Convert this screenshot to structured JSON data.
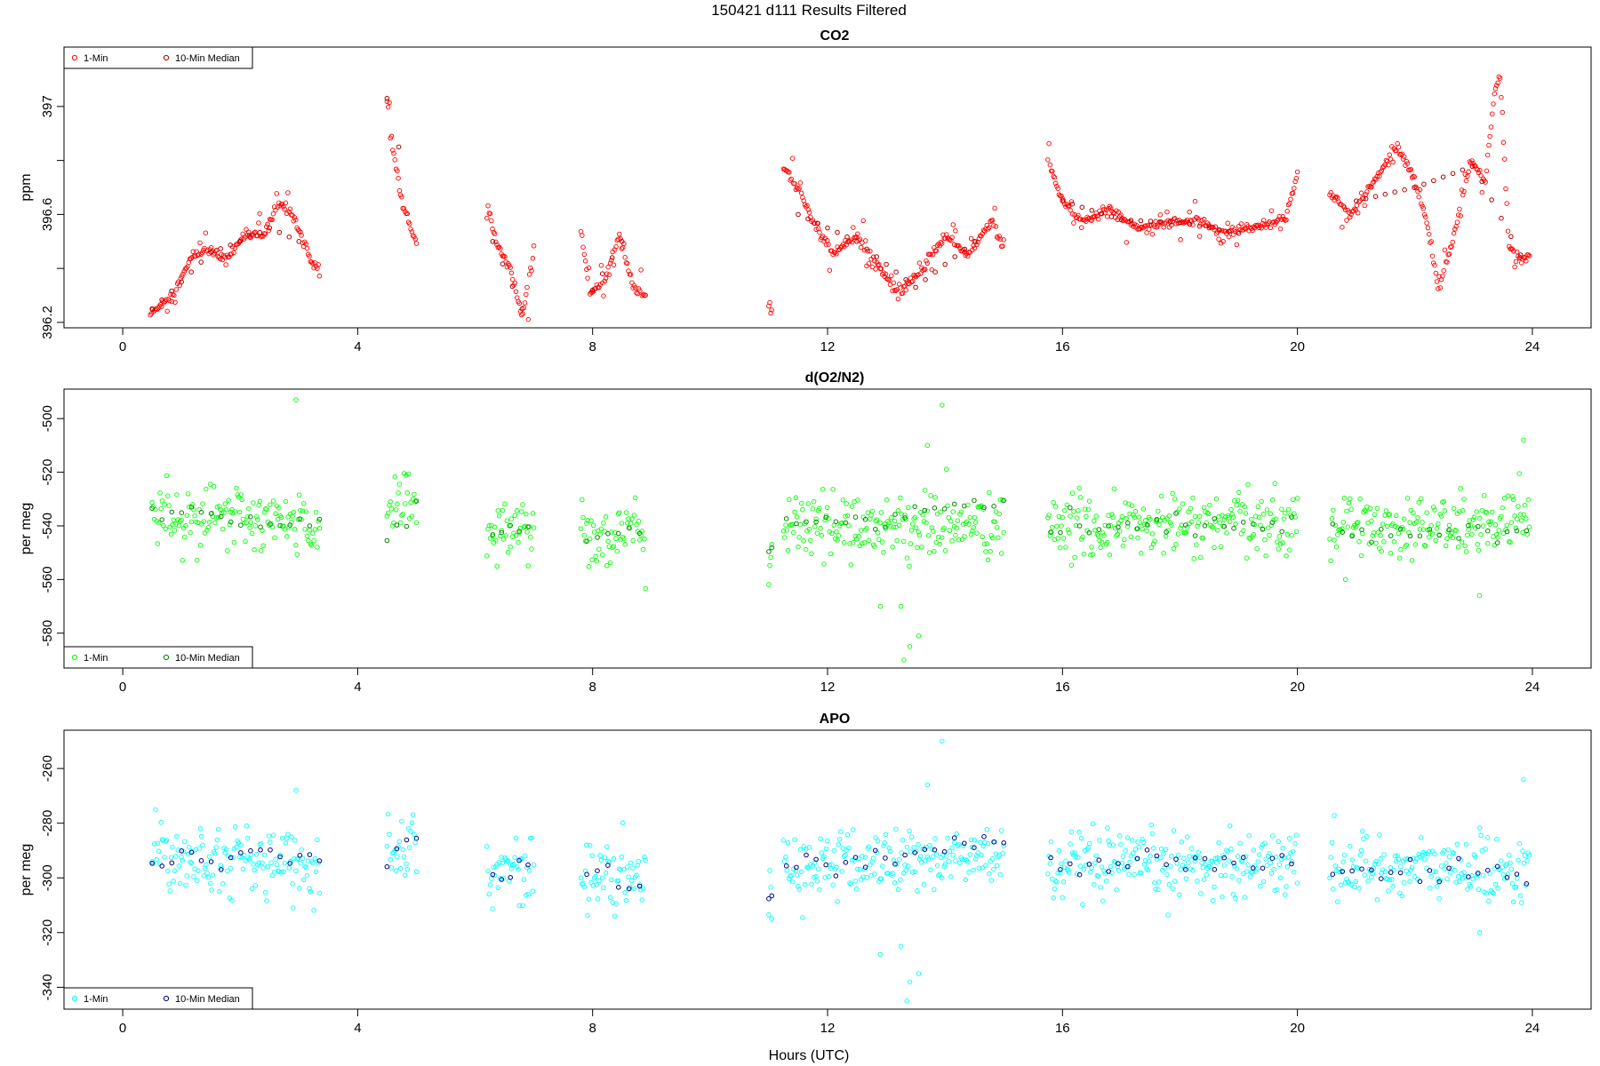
{
  "figure": {
    "title": "150421   d111   Results Filtered",
    "xlabel": "Hours (UTC)"
  },
  "legend_labels": [
    "1-Min",
    "10-Min Median"
  ],
  "chart_data": [
    {
      "type": "scatter",
      "title": "CO2",
      "ylabel": "ppm",
      "xlim": [
        -1,
        25
      ],
      "ylim": [
        396.18,
        397.22
      ],
      "xticks": [
        0,
        4,
        8,
        12,
        16,
        20,
        24
      ],
      "yticks": [
        396.2,
        396.6,
        397.0
      ],
      "yticks_minor": [
        396.4,
        396.8
      ],
      "legend": "top-left",
      "colors": {
        "one_min": "#ff0000",
        "median": "#b00000"
      },
      "series": [
        {
          "name": "1-Min",
          "segments": [
            {
              "x": [
                0.47,
                0.85,
                1.2,
                1.5,
                1.75,
                2.1,
                2.4,
                2.65,
                2.9,
                3.2,
                3.35
              ],
              "y": [
                396.23,
                396.3,
                396.45,
                396.47,
                396.43,
                396.53,
                396.52,
                396.65,
                396.6,
                396.43,
                396.39
              ]
            },
            {
              "x": [
                4.5,
                4.6,
                4.75,
                4.9,
                5.0
              ],
              "y": [
                397.03,
                396.85,
                396.65,
                396.55,
                396.5
              ]
            },
            {
              "x": [
                6.2,
                6.35,
                6.6,
                6.8,
                6.95,
                7.0
              ],
              "y": [
                396.65,
                396.5,
                396.4,
                396.22,
                396.4,
                396.48
              ]
            },
            {
              "x": [
                7.8,
                7.95,
                8.2,
                8.45,
                8.7,
                8.9
              ],
              "y": [
                396.55,
                396.3,
                396.35,
                396.53,
                396.32,
                396.3
              ]
            },
            {
              "x": [
                11.0,
                11.05
              ],
              "y": [
                396.28,
                396.24
              ]
            },
            {
              "x": [
                11.25,
                11.5,
                11.8,
                12.1,
                12.3,
                12.5,
                12.9,
                13.2,
                13.55,
                14.0,
                14.4,
                14.8,
                15.0
              ],
              "y": [
                396.78,
                396.7,
                396.55,
                396.45,
                396.5,
                396.52,
                396.4,
                396.3,
                396.38,
                396.52,
                396.45,
                396.58,
                396.48
              ]
            },
            {
              "x": [
                15.75,
                16.0,
                16.3,
                16.8,
                17.3,
                17.8,
                18.3,
                18.8,
                19.3,
                19.8,
                20.0
              ],
              "y": [
                396.8,
                396.65,
                396.57,
                396.62,
                396.55,
                396.57,
                396.58,
                396.53,
                396.55,
                396.58,
                396.75
              ]
            },
            {
              "x": [
                20.55,
                20.9,
                21.3,
                21.7,
                21.95,
                22.2,
                22.4,
                22.7,
                22.95,
                23.2,
                23.35,
                23.45,
                23.6,
                23.8,
                23.95
              ],
              "y": [
                396.68,
                396.6,
                396.72,
                396.85,
                396.75,
                396.58,
                396.32,
                396.55,
                396.8,
                396.72,
                397.05,
                397.12,
                396.5,
                396.42,
                396.45
              ]
            }
          ]
        },
        {
          "name": "10-Min Median",
          "segments": [
            {
              "x": [
                0.5,
                1.0,
                1.5,
                2.0,
                2.5,
                3.0
              ],
              "y": [
                396.25,
                396.35,
                396.46,
                396.5,
                396.55,
                396.5
              ]
            },
            {
              "x": [
                4.5,
                4.7
              ],
              "y": [
                397.03,
                396.85
              ]
            },
            {
              "x": [
                6.3,
                6.8
              ],
              "y": [
                396.5,
                396.25
              ]
            },
            {
              "x": [
                8.0,
                8.5
              ],
              "y": [
                396.32,
                396.5
              ]
            },
            {
              "x": [
                11.5,
                12.5,
                13.5,
                14.5
              ],
              "y": [
                396.6,
                396.5,
                396.33,
                396.5
              ]
            },
            {
              "x": [
                16.0,
                17.0,
                18.0,
                19.0
              ],
              "y": [
                396.65,
                396.58,
                396.57,
                396.53
              ]
            },
            {
              "x": [
                21.0,
                22.0,
                23.0,
                23.8
              ],
              "y": [
                396.65,
                396.7,
                396.78,
                396.45
              ]
            }
          ]
        }
      ]
    },
    {
      "type": "scatter",
      "title": "d(O2/N2)",
      "ylabel": "per meg",
      "xlim": [
        -1,
        25
      ],
      "ylim": [
        -593,
        -489
      ],
      "xticks": [
        0,
        4,
        8,
        12,
        16,
        20,
        24
      ],
      "yticks": [
        -580,
        -560,
        -540,
        -520,
        -500
      ],
      "legend": "bottom-left",
      "colors": {
        "one_min": "#00ff00",
        "median": "#008800"
      },
      "series": [
        {
          "name": "1-Min",
          "segments": [
            {
              "x": [
                0.5,
                3.35
              ],
              "y": [
                -535,
                -540
              ]
            },
            {
              "x": [
                4.5,
                5.0
              ],
              "y": [
                -532,
                -530
              ]
            },
            {
              "x": [
                6.2,
                7.0
              ],
              "y": [
                -542,
                -540
              ]
            },
            {
              "x": [
                7.8,
                8.9
              ],
              "y": [
                -543,
                -544
              ]
            },
            {
              "x": [
                11.0,
                11.05
              ],
              "y": [
                -551,
                -550
              ]
            },
            {
              "x": [
                11.25,
                15.0
              ],
              "y": [
                -540,
                -540
              ]
            },
            {
              "x": [
                15.75,
                20.0
              ],
              "y": [
                -541,
                -539
              ]
            },
            {
              "x": [
                20.55,
                23.95
              ],
              "y": [
                -540,
                -540
              ]
            }
          ],
          "noise_sd": 6,
          "outliers": [
            {
              "x": 2.95,
              "y": -493
            },
            {
              "x": 13.3,
              "y": -590
            },
            {
              "x": 13.4,
              "y": -585
            },
            {
              "x": 13.55,
              "y": -581
            },
            {
              "x": 13.95,
              "y": -495
            },
            {
              "x": 13.7,
              "y": -510
            },
            {
              "x": 12.9,
              "y": -570
            },
            {
              "x": 13.25,
              "y": -570
            },
            {
              "x": 23.85,
              "y": -508
            },
            {
              "x": 23.1,
              "y": -566
            }
          ]
        },
        {
          "name": "10-Min Median",
          "segments": [
            {
              "x": [
                0.5,
                3.35
              ],
              "y": [
                -535,
                -539
              ]
            },
            {
              "x": [
                4.5,
                5.0
              ],
              "y": [
                -545,
                -530
              ]
            },
            {
              "x": [
                6.3,
                6.9
              ],
              "y": [
                -542,
                -540
              ]
            },
            {
              "x": [
                7.9,
                8.8
              ],
              "y": [
                -543,
                -543
              ]
            },
            {
              "x": [
                11.0,
                11.05
              ],
              "y": [
                -551,
                -550
              ]
            },
            {
              "x": [
                11.3,
                15.0
              ],
              "y": [
                -540,
                -532
              ]
            },
            {
              "x": [
                15.8,
                19.9
              ],
              "y": [
                -540,
                -539
              ]
            },
            {
              "x": [
                20.6,
                23.9
              ],
              "y": [
                -541,
                -543
              ]
            }
          ]
        }
      ]
    },
    {
      "type": "scatter",
      "title": "APO",
      "ylabel": "per meg",
      "xlim": [
        -1,
        25
      ],
      "ylim": [
        -348,
        -246
      ],
      "xticks": [
        0,
        4,
        8,
        12,
        16,
        20,
        24
      ],
      "yticks": [
        -340,
        -320,
        -300,
        -280,
        -260
      ],
      "legend": "bottom-left",
      "colors": {
        "one_min": "#00ffff",
        "median": "#000088"
      },
      "series": [
        {
          "name": "1-Min",
          "segments": [
            {
              "x": [
                0.5,
                3.35
              ],
              "y": [
                -290,
                -296
              ]
            },
            {
              "x": [
                4.5,
                5.0
              ],
              "y": [
                -290,
                -285
              ]
            },
            {
              "x": [
                6.2,
                7.0
              ],
              "y": [
                -298,
                -297
              ]
            },
            {
              "x": [
                7.8,
                8.9
              ],
              "y": [
                -299,
                -301
              ]
            },
            {
              "x": [
                11.0,
                11.05
              ],
              "y": [
                -308,
                -307
              ]
            },
            {
              "x": [
                11.25,
                15.0
              ],
              "y": [
                -296,
                -292
              ]
            },
            {
              "x": [
                15.75,
                20.0
              ],
              "y": [
                -297,
                -294
              ]
            },
            {
              "x": [
                20.55,
                23.95
              ],
              "y": [
                -296,
                -297
              ]
            }
          ],
          "noise_sd": 6,
          "outliers": [
            {
              "x": 2.95,
              "y": -268
            },
            {
              "x": 13.35,
              "y": -345
            },
            {
              "x": 13.4,
              "y": -338
            },
            {
              "x": 13.55,
              "y": -335
            },
            {
              "x": 13.95,
              "y": -250
            },
            {
              "x": 13.7,
              "y": -266
            },
            {
              "x": 12.9,
              "y": -328
            },
            {
              "x": 13.25,
              "y": -325
            },
            {
              "x": 23.85,
              "y": -264
            },
            {
              "x": 23.1,
              "y": -320
            },
            {
              "x": 2.9,
              "y": -311
            }
          ]
        },
        {
          "name": "10-Min Median",
          "segments": [
            {
              "x": [
                0.5,
                3.35
              ],
              "y": [
                -294,
                -292
              ]
            },
            {
              "x": [
                4.5,
                5.0
              ],
              "y": [
                -298,
                -283
              ]
            },
            {
              "x": [
                6.3,
                6.9
              ],
              "y": [
                -300,
                -296
              ]
            },
            {
              "x": [
                7.9,
                8.8
              ],
              "y": [
                -299,
                -302
              ]
            },
            {
              "x": [
                11.0,
                11.05
              ],
              "y": [
                -308,
                -307
              ]
            },
            {
              "x": [
                11.3,
                15.0
              ],
              "y": [
                -296,
                -287
              ]
            },
            {
              "x": [
                15.8,
                19.9
              ],
              "y": [
                -296,
                -293
              ]
            },
            {
              "x": [
                20.6,
                23.9
              ],
              "y": [
                -296,
                -300
              ]
            }
          ]
        }
      ]
    }
  ]
}
